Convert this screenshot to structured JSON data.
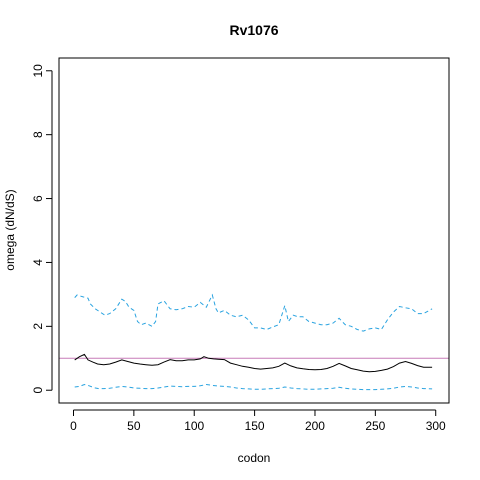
{
  "chart_data": {
    "type": "line",
    "title": "Rv1076",
    "xlabel": "codon",
    "ylabel": "omega (dN/dS)",
    "xlim": [
      -12,
      311
    ],
    "ylim": [
      -0.4,
      10.4
    ],
    "xticks": [
      0,
      50,
      100,
      150,
      200,
      250,
      300
    ],
    "yticks": [
      0,
      2,
      4,
      6,
      8,
      10
    ],
    "grid": false,
    "legend": "none",
    "reference_line": {
      "y": 1,
      "color": "#c77cb8"
    },
    "series": [
      {
        "style": "solid",
        "color": "#000000",
        "x": [
          1,
          5,
          9,
          12,
          16,
          20,
          25,
          30,
          35,
          40,
          45,
          50,
          55,
          60,
          65,
          70,
          75,
          80,
          85,
          90,
          95,
          100,
          105,
          108,
          112,
          116,
          120,
          125,
          130,
          135,
          140,
          145,
          150,
          155,
          160,
          165,
          170,
          175,
          180,
          185,
          190,
          195,
          200,
          205,
          210,
          215,
          220,
          225,
          230,
          235,
          240,
          245,
          250,
          255,
          260,
          265,
          270,
          275,
          280,
          285,
          290,
          297
        ],
        "y": [
          0.95,
          1.05,
          1.12,
          0.95,
          0.88,
          0.82,
          0.8,
          0.82,
          0.88,
          0.95,
          0.9,
          0.85,
          0.82,
          0.8,
          0.78,
          0.8,
          0.88,
          0.96,
          0.92,
          0.92,
          0.95,
          0.95,
          0.98,
          1.05,
          1.0,
          0.98,
          0.97,
          0.96,
          0.85,
          0.8,
          0.75,
          0.72,
          0.68,
          0.66,
          0.68,
          0.7,
          0.75,
          0.85,
          0.76,
          0.7,
          0.67,
          0.65,
          0.64,
          0.65,
          0.68,
          0.75,
          0.84,
          0.76,
          0.68,
          0.64,
          0.6,
          0.58,
          0.59,
          0.62,
          0.66,
          0.74,
          0.85,
          0.9,
          0.84,
          0.77,
          0.72,
          0.72
        ]
      },
      {
        "style": "dashed",
        "color": "#29a3e0",
        "x": [
          1,
          3,
          8,
          12,
          14,
          18,
          22,
          26,
          30,
          35,
          40,
          43,
          46,
          50,
          53,
          56,
          60,
          65,
          68,
          70,
          75,
          80,
          85,
          90,
          95,
          100,
          105,
          110,
          115,
          118,
          120,
          125,
          130,
          135,
          140,
          145,
          150,
          155,
          160,
          165,
          170,
          175,
          178,
          182,
          186,
          190,
          195,
          200,
          205,
          210,
          215,
          220,
          225,
          230,
          235,
          240,
          245,
          250,
          255,
          260,
          265,
          270,
          275,
          280,
          285,
          290,
          297
        ],
        "y": [
          2.9,
          2.98,
          2.92,
          2.88,
          2.7,
          2.55,
          2.45,
          2.35,
          2.4,
          2.55,
          2.85,
          2.78,
          2.6,
          2.5,
          2.15,
          2.05,
          2.1,
          2.0,
          2.15,
          2.7,
          2.8,
          2.55,
          2.52,
          2.55,
          2.62,
          2.6,
          2.75,
          2.6,
          2.98,
          2.55,
          2.42,
          2.5,
          2.35,
          2.3,
          2.35,
          2.2,
          1.95,
          1.95,
          1.9,
          1.98,
          2.05,
          2.65,
          2.15,
          2.35,
          2.3,
          2.3,
          2.15,
          2.1,
          2.05,
          2.05,
          2.1,
          2.25,
          2.05,
          2.0,
          1.9,
          1.85,
          1.92,
          1.95,
          1.9,
          2.2,
          2.45,
          2.62,
          2.58,
          2.55,
          2.4,
          2.4,
          2.55
        ]
      },
      {
        "style": "dashed",
        "color": "#29a3e0",
        "x": [
          1,
          5,
          9,
          13,
          17,
          21,
          25,
          30,
          35,
          40,
          45,
          50,
          55,
          60,
          65,
          70,
          75,
          80,
          85,
          90,
          95,
          100,
          105,
          110,
          115,
          120,
          125,
          130,
          135,
          140,
          145,
          150,
          155,
          160,
          165,
          170,
          175,
          180,
          185,
          190,
          195,
          200,
          205,
          210,
          215,
          220,
          225,
          230,
          235,
          240,
          245,
          250,
          255,
          260,
          265,
          270,
          275,
          280,
          285,
          290,
          297
        ],
        "y": [
          0.1,
          0.12,
          0.18,
          0.14,
          0.08,
          0.05,
          0.05,
          0.06,
          0.09,
          0.12,
          0.1,
          0.07,
          0.06,
          0.05,
          0.05,
          0.07,
          0.1,
          0.13,
          0.12,
          0.11,
          0.12,
          0.12,
          0.14,
          0.18,
          0.15,
          0.13,
          0.12,
          0.1,
          0.07,
          0.05,
          0.04,
          0.03,
          0.03,
          0.04,
          0.05,
          0.06,
          0.1,
          0.07,
          0.05,
          0.04,
          0.03,
          0.03,
          0.04,
          0.05,
          0.06,
          0.09,
          0.06,
          0.04,
          0.03,
          0.02,
          0.02,
          0.02,
          0.03,
          0.04,
          0.06,
          0.1,
          0.12,
          0.1,
          0.07,
          0.05,
          0.04
        ]
      }
    ]
  }
}
